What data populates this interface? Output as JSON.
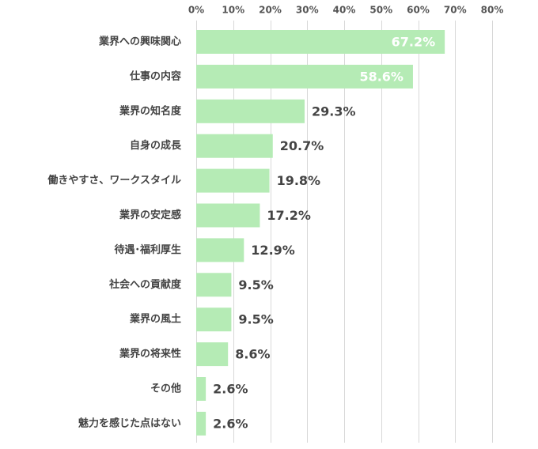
{
  "chart_data": {
    "type": "bar",
    "orientation": "horizontal",
    "categories": [
      "業界への興味関心",
      "仕事の内容",
      "業界の知名度",
      "自身の成長",
      "働きやすさ、ワークスタイル",
      "業界の安定感",
      "待遇･福利厚生",
      "社会への貢献度",
      "業界の風土",
      "業界の将来性",
      "その他",
      "魅力を感じた点はない"
    ],
    "values": [
      67.2,
      58.6,
      29.3,
      20.7,
      19.8,
      17.2,
      12.9,
      9.5,
      9.5,
      8.6,
      2.6,
      2.6
    ],
    "value_labels": [
      "67.2%",
      "58.6%",
      "29.3%",
      "20.7%",
      "19.8%",
      "17.2%",
      "12.9%",
      "9.5%",
      "9.5%",
      "8.6%",
      "2.6%",
      "2.6%"
    ],
    "xlim": [
      0,
      80
    ],
    "x_ticks": [
      0,
      10,
      20,
      30,
      40,
      50,
      60,
      70,
      80
    ],
    "x_tick_labels": [
      "0%",
      "10%",
      "20%",
      "30%",
      "40%",
      "50%",
      "60%",
      "70%",
      "80%"
    ],
    "x_axis_position": "top",
    "grid": true,
    "bar_color": "#b5ebb5",
    "label_inside_color": "#ffffff",
    "label_outside_color": "#444444",
    "title": "",
    "xlabel": "",
    "ylabel": ""
  }
}
